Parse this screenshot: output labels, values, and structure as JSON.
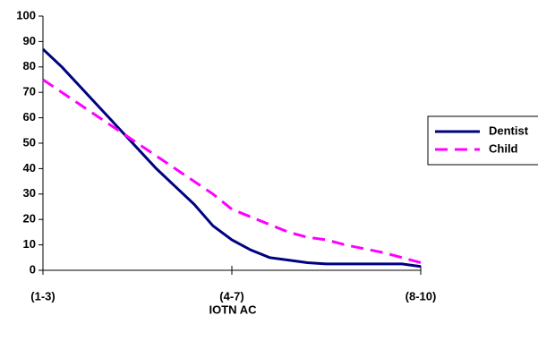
{
  "chart_data": {
    "type": "line",
    "x_label": "IOTN AC",
    "categories": [
      "(1-3)",
      null,
      null,
      null,
      null,
      null,
      null,
      null,
      null,
      null,
      "(4-7)",
      null,
      null,
      null,
      null,
      null,
      null,
      null,
      null,
      null,
      "(8-10)"
    ],
    "series": [
      {
        "name": "Dentist",
        "color": "#000080",
        "dash": false,
        "values": [
          87,
          80,
          72,
          64,
          56,
          48,
          40,
          33,
          26,
          17.5,
          12,
          8,
          5,
          4,
          3,
          2.5,
          2.5,
          2.5,
          2.5,
          2.5,
          1.5
        ]
      },
      {
        "name": "Child",
        "color": "#ff00ff",
        "dash": true,
        "values": [
          75,
          70,
          65,
          60,
          55,
          50,
          45,
          40,
          35,
          30,
          24,
          21,
          18,
          15,
          13,
          12,
          10,
          8.5,
          7,
          5,
          3
        ]
      }
    ],
    "ylim": [
      0,
      100
    ],
    "yticks": [
      0,
      10,
      20,
      30,
      40,
      50,
      60,
      70,
      80,
      90,
      100
    ],
    "legend": "right"
  }
}
